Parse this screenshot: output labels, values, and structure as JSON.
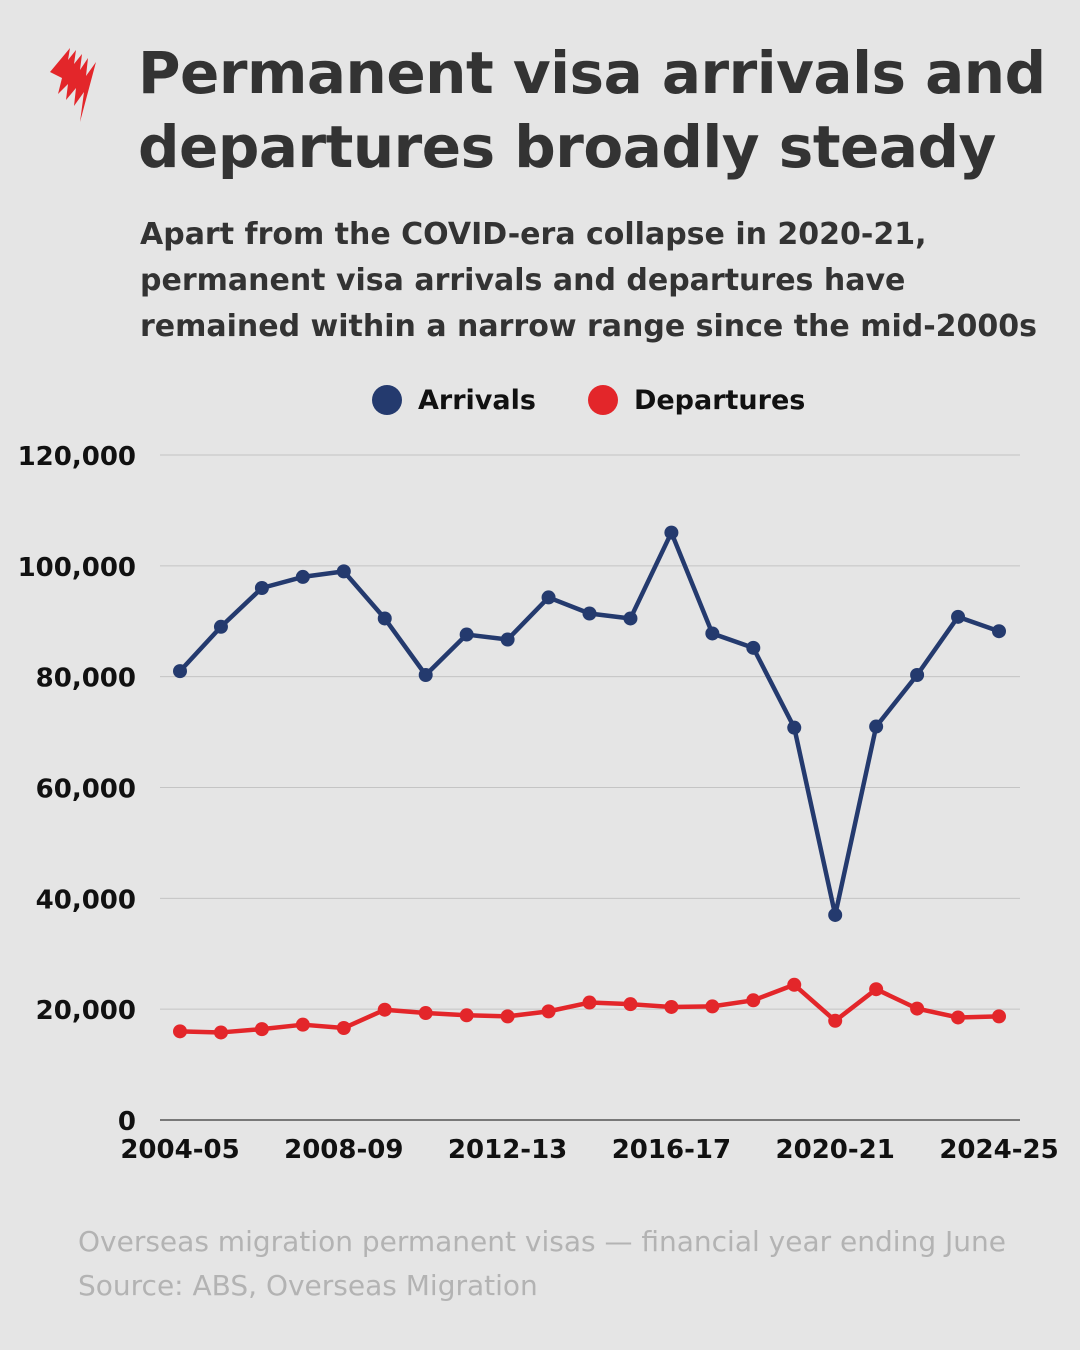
{
  "header": {
    "logo_icon": "sbs-news-logo-icon",
    "logo_color": "#e3262a",
    "title": "Permanent visa arrivals and departures broadly steady",
    "subtitle": "Apart from the COVID-era collapse in 2020-21, permanent visa arrivals and departures have remained within a narrow range since the mid-2000s"
  },
  "legend": [
    {
      "label": "Arrivals",
      "color": "#243a6e"
    },
    {
      "label": "Departures",
      "color": "#e3262a"
    }
  ],
  "chart_data": {
    "type": "line",
    "x": [
      "2004-05",
      "2005-06",
      "2006-07",
      "2007-08",
      "2008-09",
      "2009-10",
      "2010-11",
      "2011-12",
      "2012-13",
      "2013-14",
      "2014-15",
      "2015-16",
      "2016-17",
      "2017-18",
      "2018-19",
      "2019-20",
      "2020-21",
      "2021-22",
      "2022-23",
      "2023-24",
      "2024-25"
    ],
    "x_tick_labels": [
      "2004-05",
      "2008-09",
      "2012-13",
      "2016-17",
      "2020-21",
      "2024-25"
    ],
    "series": [
      {
        "name": "Arrivals",
        "color": "#243a6e",
        "values": [
          81000,
          89000,
          96000,
          98000,
          99000,
          90500,
          80300,
          87600,
          86700,
          94300,
          91400,
          90500,
          106000,
          87800,
          85200,
          70800,
          37000,
          71000,
          80300,
          90800,
          88200
        ]
      },
      {
        "name": "Departures",
        "color": "#e3262a",
        "values": [
          16000,
          15800,
          16400,
          17200,
          16600,
          19900,
          19300,
          18900,
          18700,
          19600,
          21200,
          20900,
          20400,
          20500,
          21600,
          24400,
          17900,
          23600,
          20100,
          18500,
          18700
        ]
      }
    ],
    "ylim": [
      0,
      120000
    ],
    "y_ticks": [
      0,
      20000,
      40000,
      60000,
      80000,
      100000,
      120000
    ],
    "y_tick_labels": [
      "0",
      "20,000",
      "40,000",
      "60,000",
      "80,000",
      "100,000",
      "120,000"
    ],
    "grid": true,
    "legend_position": "top-center"
  },
  "footer": {
    "note": "Overseas migration permanent visas — financial year ending June",
    "source": "Source: ABS, Overseas Migration"
  }
}
